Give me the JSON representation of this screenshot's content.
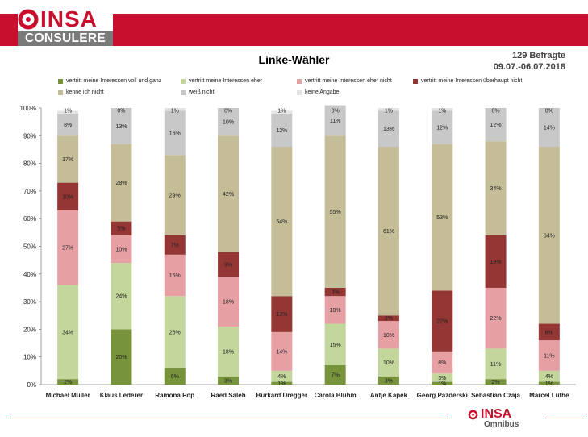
{
  "header": {
    "brand_top": "INSA",
    "brand_bottom": "CONSULERE"
  },
  "respondents": "129 Befragte",
  "period": "09.07.-06.07.2018",
  "footer": {
    "brand": "INSA",
    "sub": "Omnibus"
  },
  "colors": {
    "accent": "#c8102e"
  },
  "chart_data": {
    "type": "bar",
    "stacked": true,
    "title": "Linke-Wähler",
    "categories": [
      "Michael Müller",
      "Klaus Lederer",
      "Ramona Pop",
      "Raed Saleh",
      "Burkard Dregger",
      "Carola Bluhm",
      "Antje Kapek",
      "Georg Pazderski",
      "Sebastian Czaja",
      "Marcel Luthe"
    ],
    "ylim": [
      0,
      100
    ],
    "yticks": [
      "0%",
      "10%",
      "20%",
      "30%",
      "40%",
      "50%",
      "60%",
      "70%",
      "80%",
      "90%",
      "100%"
    ],
    "grid": false,
    "legend_position": "top",
    "series": [
      {
        "name": "vertritt meine Interessen voll und ganz",
        "color": "#77933c",
        "values": [
          2,
          20,
          6,
          3,
          1,
          7,
          3,
          1,
          2,
          1
        ]
      },
      {
        "name": "vertritt meine Interessen eher",
        "color": "#c3d69b",
        "values": [
          34,
          24,
          26,
          18,
          4,
          15,
          10,
          3,
          11,
          4
        ]
      },
      {
        "name": "vertritt meine Interessen eher nicht",
        "color": "#e6a0a4",
        "values": [
          27,
          10,
          15,
          18,
          14,
          10,
          10,
          8,
          22,
          11
        ]
      },
      {
        "name": "vertritt meine Interessen überhaupt nicht",
        "color": "#943634",
        "values": [
          10,
          5,
          7,
          9,
          13,
          3,
          2,
          22,
          19,
          6
        ]
      },
      {
        "name": "kenne ich nicht",
        "color": "#c4bd97",
        "values": [
          17,
          28,
          29,
          42,
          54,
          55,
          61,
          53,
          34,
          64
        ]
      },
      {
        "name": "weiß nicht",
        "color": "#c8c8c8",
        "values": [
          8,
          13,
          16,
          10,
          12,
          11,
          13,
          12,
          12,
          14
        ]
      },
      {
        "name": "keine Angabe",
        "color": "#e4e4e4",
        "values": [
          1,
          0,
          1,
          0,
          1,
          0,
          1,
          1,
          0,
          0
        ]
      }
    ]
  }
}
